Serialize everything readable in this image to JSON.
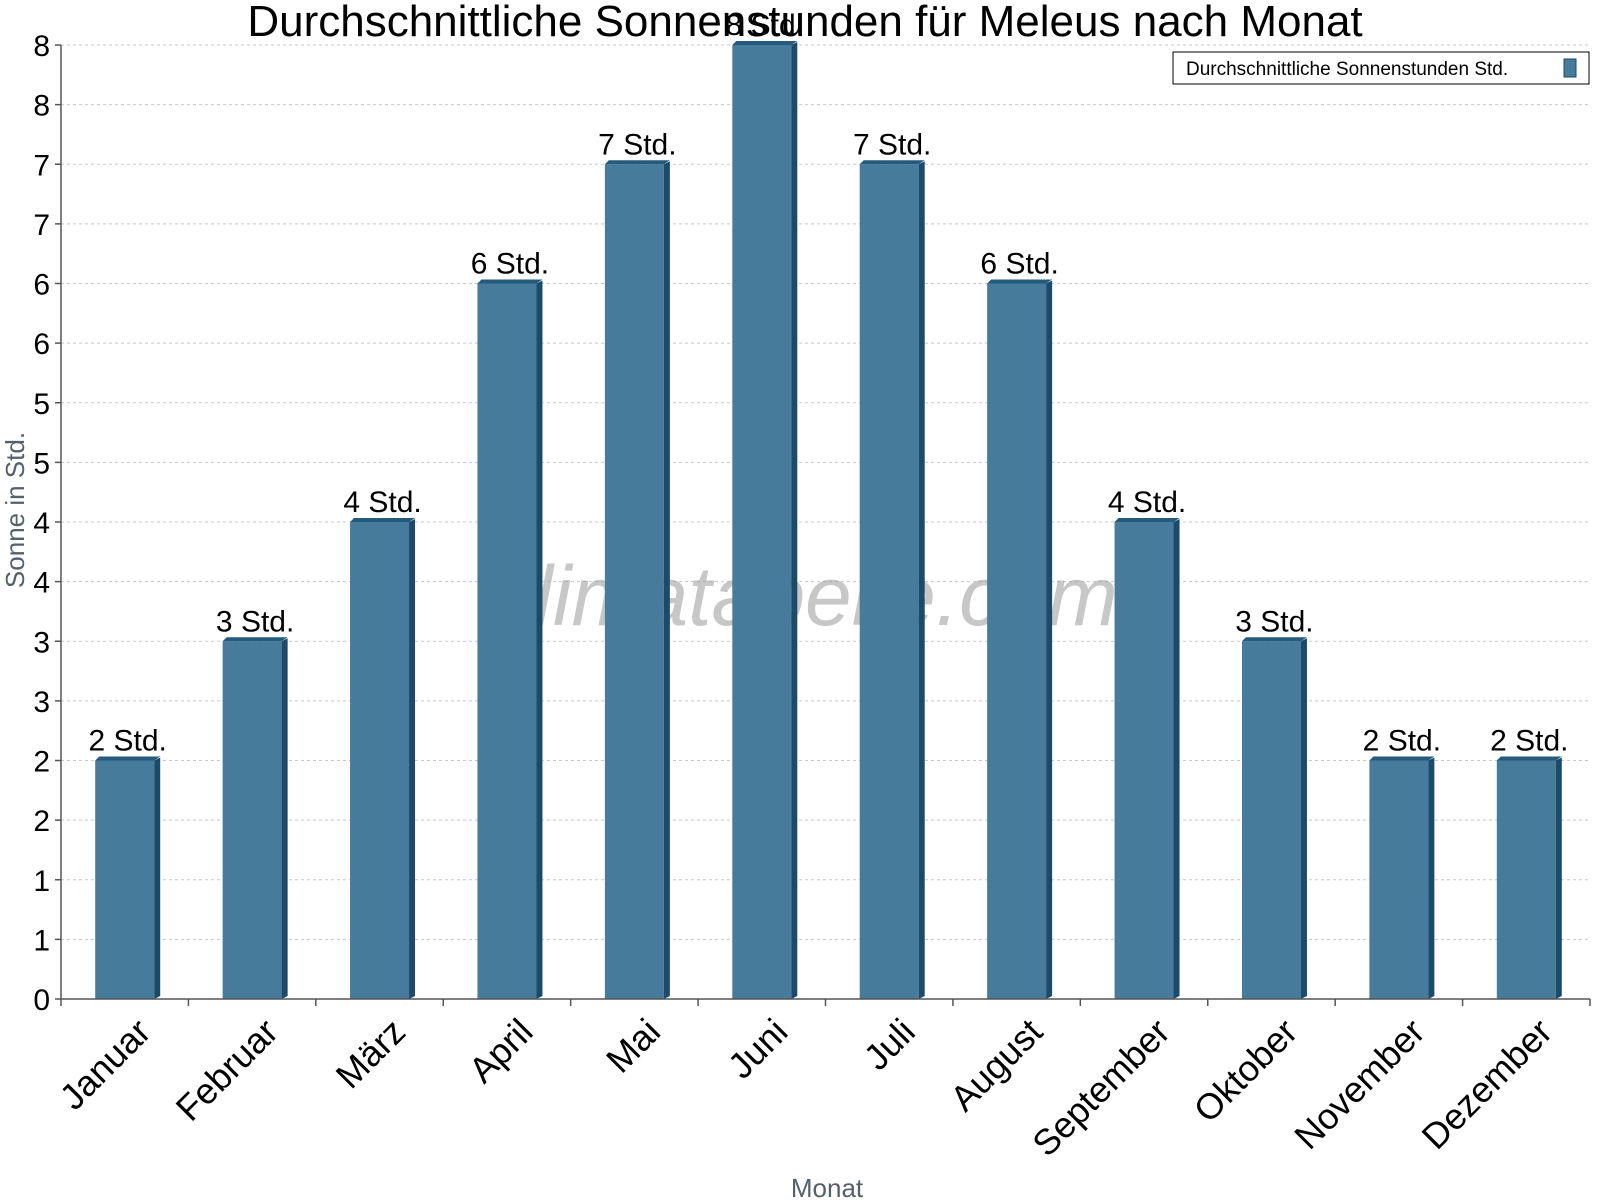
{
  "chart_data": {
    "type": "bar",
    "title": "Durchschnittliche Sonnenstunden für Meleus nach Monat",
    "xlabel": "Monat",
    "ylabel": "Sonne in Std.",
    "categories": [
      "Januar",
      "Februar",
      "März",
      "April",
      "Mai",
      "Juni",
      "Juli",
      "August",
      "September",
      "Oktober",
      "November",
      "Dezember"
    ],
    "series": [
      {
        "name": "Durchschnittliche Sonnenstunden Std.",
        "values": [
          2,
          3,
          4,
          6,
          7,
          8,
          7,
          6,
          4,
          3,
          2,
          2
        ],
        "data_labels": [
          "2 Std.",
          "3 Std.",
          "4 Std.",
          "6 Std.",
          "7 Std.",
          "8 Std.",
          "7 Std.",
          "6 Std.",
          "4 Std.",
          "3 Std.",
          "2 Std.",
          "2 Std."
        ]
      }
    ],
    "ylim": [
      0,
      8
    ],
    "yticks": [
      "0",
      "1",
      "1",
      "2",
      "2",
      "3",
      "3",
      "4",
      "4",
      "5",
      "5",
      "6",
      "6",
      "7",
      "7",
      "8",
      "8"
    ],
    "grid": true,
    "legend_position": "top-right",
    "colors": {
      "bar": "#467b9c",
      "bar_side": "#1b4a6b",
      "bar_top": "#245a7c"
    },
    "watermark": "klimatabelle.com"
  }
}
